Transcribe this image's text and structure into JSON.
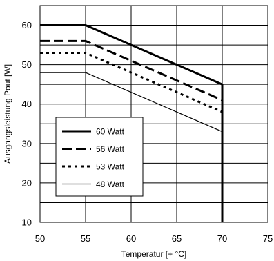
{
  "chart_data": {
    "type": "line",
    "title": "",
    "xlabel": "Temperatur [+ °C]",
    "ylabel": "Ausgangsleistung Pout [W]",
    "xlim": [
      50,
      75
    ],
    "ylim": [
      10,
      65
    ],
    "x_ticks": [
      50,
      55,
      60,
      65,
      70,
      75
    ],
    "y_ticks": [
      10,
      20,
      30,
      40,
      50,
      60
    ],
    "x_tick_labels": [
      "50",
      "55",
      "60",
      "65",
      "70",
      "75"
    ],
    "y_tick_labels": [
      "10",
      "20",
      "30",
      "40",
      "50",
      "60"
    ],
    "grid": true,
    "legend_position": "lower-left",
    "series": [
      {
        "name": "60 Watt",
        "style": "solid-thick",
        "x": [
          50,
          55,
          70,
          70
        ],
        "y": [
          60,
          60,
          45,
          10
        ]
      },
      {
        "name": "56 Watt",
        "style": "dashed-long",
        "x": [
          50,
          55,
          70,
          70
        ],
        "y": [
          56,
          56,
          41,
          10
        ]
      },
      {
        "name": "53 Watt",
        "style": "dotted",
        "x": [
          50,
          55,
          70,
          70
        ],
        "y": [
          53,
          53,
          38,
          10
        ]
      },
      {
        "name": "48 Watt",
        "style": "solid-thin",
        "x": [
          50,
          55,
          70,
          70
        ],
        "y": [
          48,
          48,
          33,
          10
        ]
      }
    ]
  }
}
